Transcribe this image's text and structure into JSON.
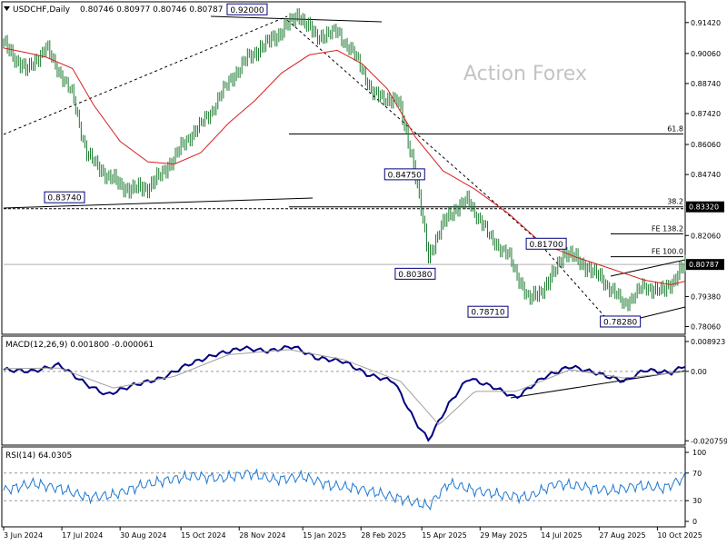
{
  "header": {
    "menu_icon": "triangle-down-icon",
    "symbol": "USDCHF,Daily",
    "ohlc": "0.80746 0.80977 0.80746 0.80787",
    "watermark": "Action Forex"
  },
  "colors": {
    "candle": "#1a7a2e",
    "ma": "#d62020",
    "macd": "#000080",
    "signal": "#a0a0a0",
    "rsi": "#1e78d2",
    "trend": "#000000",
    "label_border": "#000080",
    "current_price_bg": "#000000",
    "price_label_bg": "#000000"
  },
  "chart_data": [
    {
      "type": "candlestick",
      "title": "USDCHF,Daily",
      "x_dates": [
        "3 Jun 2024",
        "17 Jul 2024",
        "30 Aug 2024",
        "15 Oct 2024",
        "28 Nov 2024",
        "15 Jan 2025",
        "28 Feb 2025",
        "15 Apr 2025",
        "29 May 2025",
        "14 Jul 2025",
        "27 Aug 2025",
        "10 Oct 2025"
      ],
      "y_ticks": [
        "0.91420",
        "0.90060",
        "0.88740",
        "0.87420",
        "0.86060",
        "0.84740",
        "0.82060",
        "0.79380",
        "0.78060"
      ],
      "ylim": [
        0.778,
        0.9225
      ],
      "grid": false,
      "path_points": [
        {
          "date": "2024-06-03",
          "close": 0.905
        },
        {
          "date": "2024-06-20",
          "close": 0.893
        },
        {
          "date": "2024-07-05",
          "close": 0.903
        },
        {
          "date": "2024-07-25",
          "close": 0.882
        },
        {
          "date": "2024-08-05",
          "close": 0.856
        },
        {
          "date": "2024-08-20",
          "close": 0.847
        },
        {
          "date": "2024-09-05",
          "close": 0.841
        },
        {
          "date": "2024-09-20",
          "close": 0.842
        },
        {
          "date": "2024-10-01",
          "close": 0.848
        },
        {
          "date": "2024-10-20",
          "close": 0.863
        },
        {
          "date": "2024-11-05",
          "close": 0.873
        },
        {
          "date": "2024-11-20",
          "close": 0.888
        },
        {
          "date": "2024-12-05",
          "close": 0.899
        },
        {
          "date": "2024-12-25",
          "close": 0.908
        },
        {
          "date": "2025-01-12",
          "close": 0.918
        },
        {
          "date": "2025-01-25",
          "close": 0.908
        },
        {
          "date": "2025-02-10",
          "close": 0.91
        },
        {
          "date": "2025-02-25",
          "close": 0.898
        },
        {
          "date": "2025-03-10",
          "close": 0.882
        },
        {
          "date": "2025-03-28",
          "close": 0.88
        },
        {
          "date": "2025-04-08",
          "close": 0.855
        },
        {
          "date": "2025-04-20",
          "close": 0.812
        },
        {
          "date": "2025-05-05",
          "close": 0.83
        },
        {
          "date": "2025-05-20",
          "close": 0.836
        },
        {
          "date": "2025-06-05",
          "close": 0.82
        },
        {
          "date": "2025-06-20",
          "close": 0.811
        },
        {
          "date": "2025-07-05",
          "close": 0.792
        },
        {
          "date": "2025-07-20",
          "close": 0.8
        },
        {
          "date": "2025-08-01",
          "close": 0.814
        },
        {
          "date": "2025-08-15",
          "close": 0.808
        },
        {
          "date": "2025-08-30",
          "close": 0.801
        },
        {
          "date": "2025-09-15",
          "close": 0.79
        },
        {
          "date": "2025-09-30",
          "close": 0.798
        },
        {
          "date": "2025-10-15",
          "close": 0.796
        },
        {
          "date": "2025-10-31",
          "close": 0.8079
        }
      ],
      "moving_average": [
        {
          "date": "2024-06-03",
          "value": 0.903
        },
        {
          "date": "2024-06-20",
          "value": 0.901
        },
        {
          "date": "2024-07-05",
          "value": 0.899
        },
        {
          "date": "2024-07-25",
          "value": 0.894
        },
        {
          "date": "2024-08-10",
          "value": 0.878
        },
        {
          "date": "2024-08-30",
          "value": 0.862
        },
        {
          "date": "2024-09-20",
          "value": 0.853
        },
        {
          "date": "2024-10-10",
          "value": 0.852
        },
        {
          "date": "2024-10-30",
          "value": 0.857
        },
        {
          "date": "2024-11-20",
          "value": 0.87
        },
        {
          "date": "2024-12-10",
          "value": 0.88
        },
        {
          "date": "2024-12-30",
          "value": 0.892
        },
        {
          "date": "2025-01-20",
          "value": 0.9
        },
        {
          "date": "2025-02-10",
          "value": 0.902
        },
        {
          "date": "2025-03-01",
          "value": 0.896
        },
        {
          "date": "2025-03-20",
          "value": 0.885
        },
        {
          "date": "2025-04-10",
          "value": 0.864
        },
        {
          "date": "2025-05-01",
          "value": 0.849
        },
        {
          "date": "2025-05-25",
          "value": 0.841
        },
        {
          "date": "2025-06-20",
          "value": 0.83
        },
        {
          "date": "2025-07-15",
          "value": 0.817
        },
        {
          "date": "2025-08-10",
          "value": 0.811
        },
        {
          "date": "2025-09-05",
          "value": 0.806
        },
        {
          "date": "2025-09-30",
          "value": 0.801
        },
        {
          "date": "2025-10-20",
          "value": 0.799
        },
        {
          "date": "2025-10-31",
          "value": 0.8005
        }
      ],
      "current_price": "0.80787",
      "price_labels": [
        "0.83320"
      ],
      "horizontal_levels": [
        {
          "label": "61.8",
          "value": 0.8652
        },
        {
          "label": "38.2",
          "value": 0.8332
        },
        {
          "label": "FE 138.2",
          "value": 0.8213
        },
        {
          "label": "FE 100.0",
          "value": 0.8113
        }
      ],
      "annotations": [
        {
          "text": "0.92000",
          "date": "2024-12-04",
          "value": 0.92
        },
        {
          "text": "0.83740",
          "date": "2024-07-19",
          "value": 0.8374
        },
        {
          "text": "0.84750",
          "date": "2025-04-02",
          "value": 0.8475
        },
        {
          "text": "0.80380",
          "date": "2025-04-10",
          "value": 0.8038
        },
        {
          "text": "0.81700",
          "date": "2025-07-18",
          "value": 0.817
        },
        {
          "text": "0.78710",
          "date": "2025-06-04",
          "value": 0.7871
        },
        {
          "text": "0.78280",
          "date": "2025-09-12",
          "value": 0.7828
        }
      ]
    },
    {
      "type": "line",
      "title": "MACD(12,26,9) 0.001800 -0.000061",
      "y_ticks": [
        "0.008923",
        "0.00",
        "-0.020759"
      ],
      "ylim": [
        -0.0215,
        0.01
      ],
      "series": [
        {
          "name": "MACD",
          "points": [
            {
              "date": "2024-06-03",
              "value": 0.0005
            },
            {
              "date": "2024-06-25",
              "value": 0.0
            },
            {
              "date": "2024-07-15",
              "value": 0.002
            },
            {
              "date": "2024-08-05",
              "value": -0.004
            },
            {
              "date": "2024-08-20",
              "value": -0.007
            },
            {
              "date": "2024-09-10",
              "value": -0.004
            },
            {
              "date": "2024-10-01",
              "value": -0.002
            },
            {
              "date": "2024-10-20",
              "value": 0.002
            },
            {
              "date": "2024-11-10",
              "value": 0.005
            },
            {
              "date": "2024-12-01",
              "value": 0.007
            },
            {
              "date": "2024-12-20",
              "value": 0.006
            },
            {
              "date": "2025-01-08",
              "value": 0.0075
            },
            {
              "date": "2025-01-25",
              "value": 0.004
            },
            {
              "date": "2025-02-15",
              "value": 0.003
            },
            {
              "date": "2025-03-05",
              "value": -0.001
            },
            {
              "date": "2025-03-25",
              "value": -0.003
            },
            {
              "date": "2025-04-10",
              "value": -0.015
            },
            {
              "date": "2025-04-20",
              "value": -0.0205
            },
            {
              "date": "2025-05-05",
              "value": -0.01
            },
            {
              "date": "2025-05-20",
              "value": -0.002
            },
            {
              "date": "2025-06-10",
              "value": -0.005
            },
            {
              "date": "2025-06-25",
              "value": -0.008
            },
            {
              "date": "2025-07-15",
              "value": -0.002
            },
            {
              "date": "2025-08-05",
              "value": 0.0015
            },
            {
              "date": "2025-08-25",
              "value": -0.0005
            },
            {
              "date": "2025-09-15",
              "value": -0.003
            },
            {
              "date": "2025-10-01",
              "value": 0.0005
            },
            {
              "date": "2025-10-20",
              "value": -0.0005
            },
            {
              "date": "2025-10-31",
              "value": 0.0018
            }
          ]
        },
        {
          "name": "Signal",
          "points": [
            {
              "date": "2024-06-03",
              "value": 0.0008
            },
            {
              "date": "2024-07-15",
              "value": 0.001
            },
            {
              "date": "2024-08-25",
              "value": -0.005
            },
            {
              "date": "2024-10-10",
              "value": -0.0015
            },
            {
              "date": "2024-11-20",
              "value": 0.005
            },
            {
              "date": "2025-01-05",
              "value": 0.0065
            },
            {
              "date": "2025-02-15",
              "value": 0.0035
            },
            {
              "date": "2025-03-30",
              "value": -0.003
            },
            {
              "date": "2025-04-28",
              "value": -0.016
            },
            {
              "date": "2025-05-25",
              "value": -0.006
            },
            {
              "date": "2025-06-25",
              "value": -0.006
            },
            {
              "date": "2025-08-05",
              "value": 0.0005
            },
            {
              "date": "2025-09-15",
              "value": -0.002
            },
            {
              "date": "2025-10-31",
              "value": -0.0001
            }
          ]
        }
      ]
    },
    {
      "type": "line",
      "title": "RSI(14) 64.0305",
      "y_ticks": [
        "100",
        "70",
        "30",
        "0"
      ],
      "ylim": [
        0,
        100
      ],
      "series": [
        {
          "name": "RSI",
          "points": [
            {
              "date": "2024-06-03",
              "value": 45
            },
            {
              "date": "2024-06-25",
              "value": 55
            },
            {
              "date": "2024-07-15",
              "value": 48
            },
            {
              "date": "2024-08-05",
              "value": 35
            },
            {
              "date": "2024-08-25",
              "value": 38
            },
            {
              "date": "2024-09-15",
              "value": 52
            },
            {
              "date": "2024-10-05",
              "value": 60
            },
            {
              "date": "2024-10-25",
              "value": 66
            },
            {
              "date": "2024-11-15",
              "value": 62
            },
            {
              "date": "2024-12-05",
              "value": 70
            },
            {
              "date": "2024-12-25",
              "value": 60
            },
            {
              "date": "2025-01-15",
              "value": 65
            },
            {
              "date": "2025-02-05",
              "value": 52
            },
            {
              "date": "2025-02-25",
              "value": 48
            },
            {
              "date": "2025-03-15",
              "value": 40
            },
            {
              "date": "2025-04-05",
              "value": 30
            },
            {
              "date": "2025-04-20",
              "value": 22
            },
            {
              "date": "2025-05-05",
              "value": 55
            },
            {
              "date": "2025-05-25",
              "value": 45
            },
            {
              "date": "2025-06-15",
              "value": 38
            },
            {
              "date": "2025-07-05",
              "value": 35
            },
            {
              "date": "2025-07-25",
              "value": 55
            },
            {
              "date": "2025-08-15",
              "value": 50
            },
            {
              "date": "2025-09-05",
              "value": 44
            },
            {
              "date": "2025-09-25",
              "value": 52
            },
            {
              "date": "2025-10-15",
              "value": 48
            },
            {
              "date": "2025-10-31",
              "value": 64
            }
          ]
        }
      ]
    }
  ]
}
